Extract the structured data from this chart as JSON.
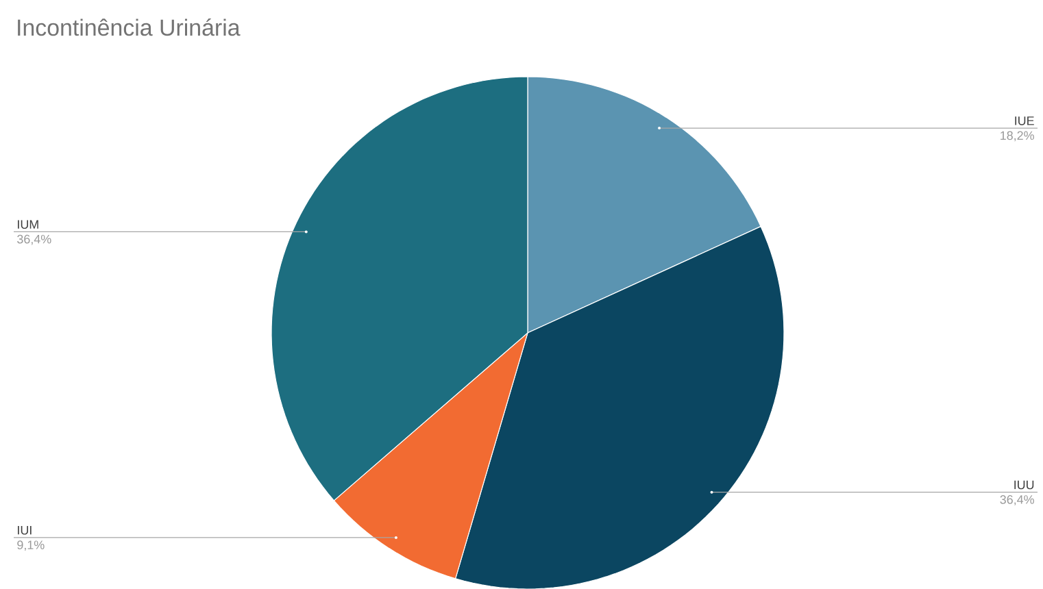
{
  "chart_data": {
    "type": "pie",
    "title": "Incontinência Urinária",
    "categories": [
      "IUE",
      "IUU",
      "IUI",
      "IUM"
    ],
    "values": [
      18.2,
      36.4,
      9.1,
      36.4
    ],
    "value_labels": [
      "18,2%",
      "36,4%",
      "9,1%",
      "36,4%"
    ],
    "colors": [
      "#5b94b1",
      "#0b4661",
      "#f26b32",
      "#1d6e80"
    ]
  }
}
